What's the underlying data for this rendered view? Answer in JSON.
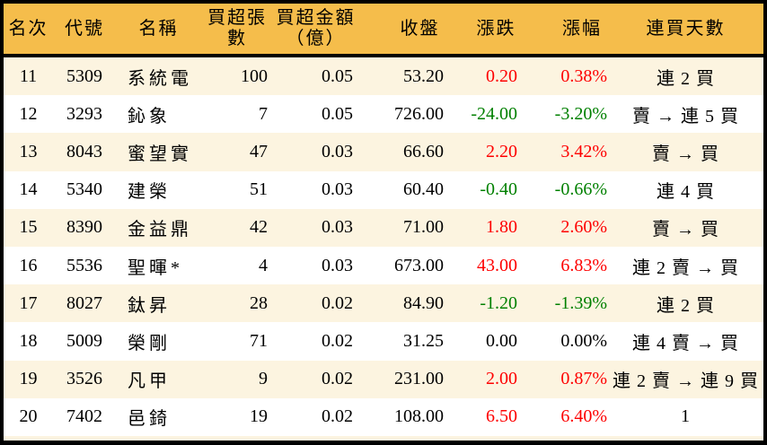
{
  "colors": {
    "up": "#fe0000",
    "down": "#008000",
    "flat": "#000000",
    "header_bg": "#f5bd4b",
    "stripe_bg": "#fcf4e0",
    "border": "#000000"
  },
  "chart_data": {
    "type": "table",
    "columns": [
      {
        "key": "rank",
        "label": "名次"
      },
      {
        "key": "code",
        "label": "代號"
      },
      {
        "key": "name",
        "label": "名稱"
      },
      {
        "key": "volume",
        "label": "買超張數"
      },
      {
        "key": "amount",
        "label": "買超金額",
        "sublabel": "（億）"
      },
      {
        "key": "close",
        "label": "收盤"
      },
      {
        "key": "change",
        "label": "漲跌"
      },
      {
        "key": "pct",
        "label": "漲幅"
      },
      {
        "key": "streak",
        "label": "連買天數"
      }
    ],
    "rows": [
      {
        "rank": "11",
        "code": "5309",
        "name": "系統電",
        "volume": "100",
        "amount": "0.05",
        "close": "53.20",
        "change": "0.20",
        "pct": "0.38%",
        "streak": "連 2 買",
        "trend": "up"
      },
      {
        "rank": "12",
        "code": "3293",
        "name": "鈊象",
        "volume": "7",
        "amount": "0.05",
        "close": "726.00",
        "change": "-24.00",
        "pct": "-3.20%",
        "streak": "賣 → 連 5 買",
        "trend": "down"
      },
      {
        "rank": "13",
        "code": "8043",
        "name": "蜜望實",
        "volume": "47",
        "amount": "0.03",
        "close": "66.60",
        "change": "2.20",
        "pct": "3.42%",
        "streak": "賣 → 買",
        "trend": "up"
      },
      {
        "rank": "14",
        "code": "5340",
        "name": "建榮",
        "volume": "51",
        "amount": "0.03",
        "close": "60.40",
        "change": "-0.40",
        "pct": "-0.66%",
        "streak": "連 4 買",
        "trend": "down"
      },
      {
        "rank": "15",
        "code": "8390",
        "name": "金益鼎",
        "volume": "42",
        "amount": "0.03",
        "close": "71.00",
        "change": "1.80",
        "pct": "2.60%",
        "streak": "賣 → 買",
        "trend": "up"
      },
      {
        "rank": "16",
        "code": "5536",
        "name": "聖暉*",
        "volume": "4",
        "amount": "0.03",
        "close": "673.00",
        "change": "43.00",
        "pct": "6.83%",
        "streak": "連 2 賣 → 買",
        "trend": "up"
      },
      {
        "rank": "17",
        "code": "8027",
        "name": "鈦昇",
        "volume": "28",
        "amount": "0.02",
        "close": "84.90",
        "change": "-1.20",
        "pct": "-1.39%",
        "streak": "連 2 買",
        "trend": "down"
      },
      {
        "rank": "18",
        "code": "5009",
        "name": "榮剛",
        "volume": "71",
        "amount": "0.02",
        "close": "31.25",
        "change": "0.00",
        "pct": "0.00%",
        "streak": "連 4 賣 → 買",
        "trend": "flat"
      },
      {
        "rank": "19",
        "code": "3526",
        "name": "凡甲",
        "volume": "9",
        "amount": "0.02",
        "close": "231.00",
        "change": "2.00",
        "pct": "0.87%",
        "streak": "連 2 賣 → 連 9 買",
        "trend": "up"
      },
      {
        "rank": "20",
        "code": "7402",
        "name": "邑錡",
        "volume": "19",
        "amount": "0.02",
        "close": "108.00",
        "change": "6.50",
        "pct": "6.40%",
        "streak": "1",
        "trend": "up"
      }
    ]
  }
}
